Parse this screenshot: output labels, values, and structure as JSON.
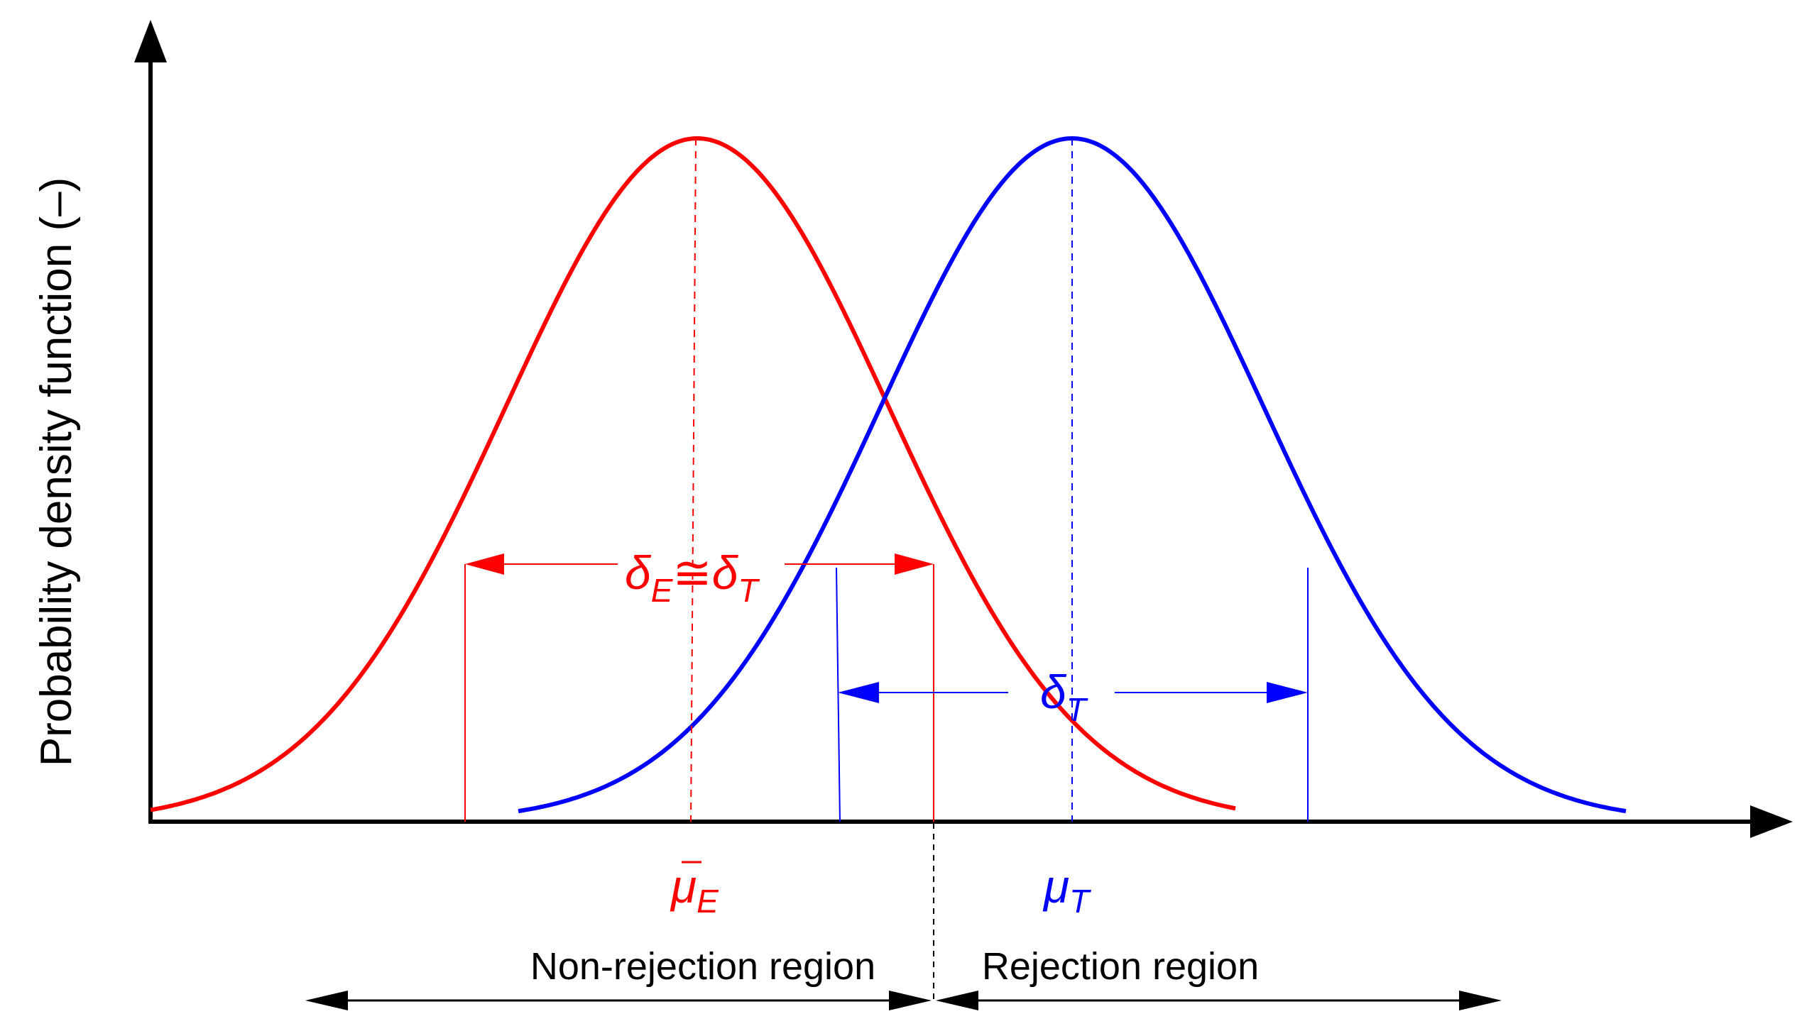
{
  "y_axis_label": "Probability density function (–)",
  "curves": [
    {
      "name": "red-distribution",
      "color": "#ff0000"
    },
    {
      "name": "blue-distribution",
      "color": "#0000ff"
    }
  ],
  "labels": {
    "delta_e": {
      "base": "δ",
      "sub": "E"
    },
    "approx": "≅",
    "delta_t_red": {
      "base": "δ",
      "sub": "T"
    },
    "delta_t_blue": {
      "base": "δ",
      "sub": "T"
    },
    "mu_e": {
      "base": "μ",
      "sub": "E"
    },
    "mu_t": {
      "base": "μ",
      "sub": "T"
    }
  },
  "regions": {
    "non_rejection": "Non-rejection region",
    "rejection": "Rejection region"
  },
  "colors": {
    "red": "#ff0000",
    "blue": "#0000ff",
    "axis": "#000000"
  }
}
